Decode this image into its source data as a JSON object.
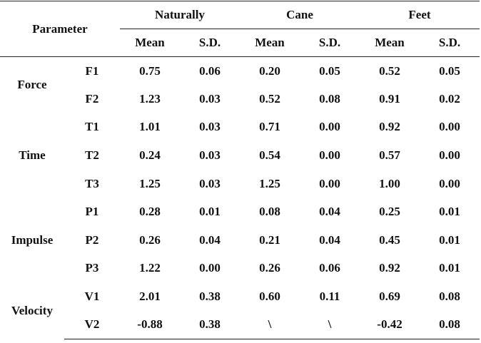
{
  "table": {
    "header": {
      "parameter": "Parameter",
      "conditions": [
        "Naturally",
        "Cane",
        "Feet"
      ],
      "stats": [
        "Mean",
        "S.D.",
        "Mean",
        "S.D.",
        "Mean",
        "S.D."
      ]
    },
    "groups": [
      {
        "name": "Force",
        "rows": [
          {
            "code": "F1",
            "values": [
              "0.75",
              "0.06",
              "0.20",
              "0.05",
              "0.52",
              "0.05"
            ]
          },
          {
            "code": "F2",
            "values": [
              "1.23",
              "0.03",
              "0.52",
              "0.08",
              "0.91",
              "0.02"
            ]
          }
        ]
      },
      {
        "name": "Time",
        "rows": [
          {
            "code": "T1",
            "values": [
              "1.01",
              "0.03",
              "0.71",
              "0.00",
              "0.92",
              "0.00"
            ]
          },
          {
            "code": "T2",
            "values": [
              "0.24",
              "0.03",
              "0.54",
              "0.00",
              "0.57",
              "0.00"
            ]
          },
          {
            "code": "T3",
            "values": [
              "1.25",
              "0.03",
              "1.25",
              "0.00",
              "1.00",
              "0.00"
            ]
          }
        ]
      },
      {
        "name": "Impulse",
        "rows": [
          {
            "code": "P1",
            "values": [
              "0.28",
              "0.01",
              "0.08",
              "0.04",
              "0.25",
              "0.01"
            ]
          },
          {
            "code": "P2",
            "values": [
              "0.26",
              "0.04",
              "0.21",
              "0.04",
              "0.45",
              "0.01"
            ]
          },
          {
            "code": "P3",
            "values": [
              "1.22",
              "0.00",
              "0.26",
              "0.06",
              "0.92",
              "0.01"
            ]
          }
        ]
      },
      {
        "name": "Velocity",
        "rows": [
          {
            "code": "V1",
            "values": [
              "2.01",
              "0.38",
              "0.60",
              "0.11",
              "0.69",
              "0.08"
            ]
          },
          {
            "code": "V2",
            "values": [
              "-0.88",
              "0.38",
              "\\",
              "\\",
              "-0.42",
              "0.08"
            ]
          }
        ]
      }
    ]
  }
}
